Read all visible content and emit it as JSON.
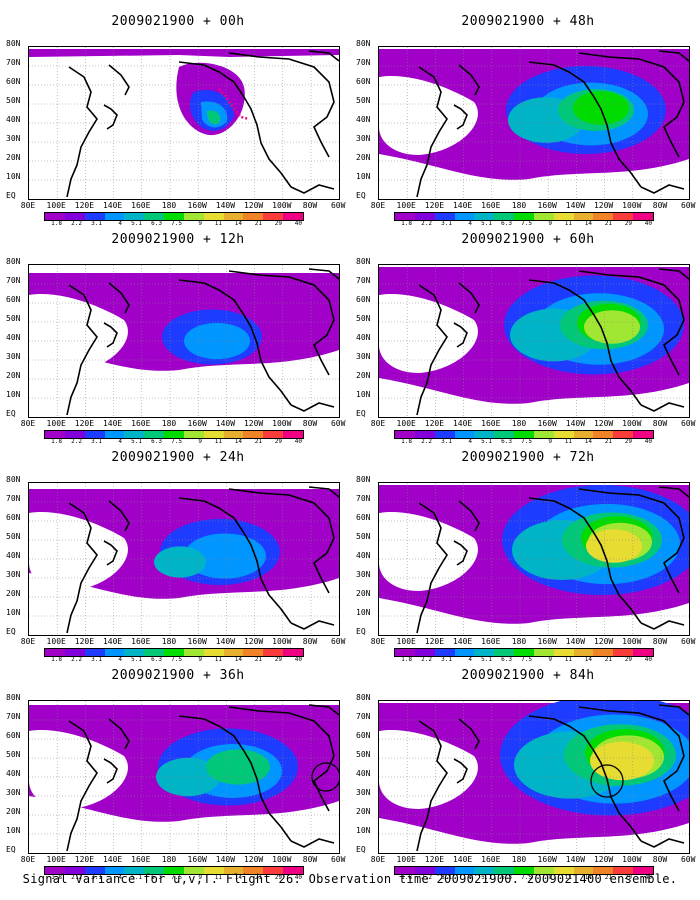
{
  "panels": [
    {
      "title": "2009021900 + 00h",
      "stage": 0
    },
    {
      "title": "2009021900 + 48h",
      "stage": 4
    },
    {
      "title": "2009021900 + 12h",
      "stage": 1
    },
    {
      "title": "2009021900 + 60h",
      "stage": 5
    },
    {
      "title": "2009021900 + 24h",
      "stage": 2
    },
    {
      "title": "2009021900 + 72h",
      "stage": 6
    },
    {
      "title": "2009021900 + 36h",
      "stage": 3
    },
    {
      "title": "2009021900 + 84h",
      "stage": 7
    }
  ],
  "lat_labels": [
    "80N",
    "70N",
    "60N",
    "50N",
    "40N",
    "30N",
    "20N",
    "10N",
    "EQ"
  ],
  "lon_labels": [
    "80E",
    "100E",
    "120E",
    "140E",
    "160E",
    "180",
    "160W",
    "140W",
    "120W",
    "100W",
    "80W",
    "60W"
  ],
  "colorbar": {
    "labels": [
      "1.8",
      "2.2",
      "3.1",
      "4",
      "5.1",
      "6.3",
      "7.5",
      "9",
      "11",
      "14",
      "21",
      "29",
      "40"
    ],
    "colors": [
      "#a000c8",
      "#8200dc",
      "#1e3cff",
      "#0096ff",
      "#00b4c8",
      "#00c878",
      "#00dc00",
      "#a0e632",
      "#e6dc32",
      "#e6af2d",
      "#f08228",
      "#fa3c3c",
      "#f00082"
    ]
  },
  "caption": "Signal Variance for u,v,T. Flight 26. Observation time 2009021900. 2009021400 ensemble."
}
